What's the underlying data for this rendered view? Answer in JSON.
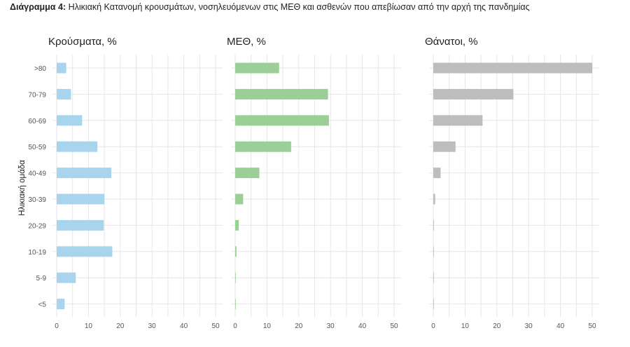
{
  "figure": {
    "title_prefix": "Διάγραμμα 4",
    "title_text": " Ηλικιακή Κατανομή κρουσμάτων, νοσηλευόμενων στις ΜΕΘ και ασθενών που απεβίωσαν από την αρχή της πανδημίας"
  },
  "chart_data": {
    "type": "bar",
    "orientation": "horizontal",
    "ylabel": "Ηλικιακή ομάδα",
    "categories": [
      ">80",
      "70-79",
      "60-69",
      "50-59",
      "40-49",
      "30-39",
      "20-29",
      "10-19",
      "5-9",
      "<5"
    ],
    "xlim": [
      0,
      50
    ],
    "xticks": [
      0,
      10,
      20,
      30,
      40,
      50
    ],
    "grid": true,
    "legend": "none",
    "panels": [
      {
        "title": "Κρούσματα, %",
        "color": "#a9d4ee",
        "values": [
          3,
          4.5,
          8,
          12.8,
          17.2,
          15,
          14.8,
          17.5,
          6,
          2.5
        ]
      },
      {
        "title": "ΜΕΘ, %",
        "color": "#9ccf98",
        "values": [
          13.8,
          29.2,
          29.5,
          17.6,
          7.6,
          2.5,
          1.1,
          0.4,
          0.1,
          0.1
        ]
      },
      {
        "title": "Θάνατοι, %",
        "color": "#bdbdbd",
        "values": [
          50,
          25.2,
          15.5,
          7,
          2.3,
          0.6,
          0.2,
          0.1,
          0.05,
          0.05
        ]
      }
    ]
  }
}
